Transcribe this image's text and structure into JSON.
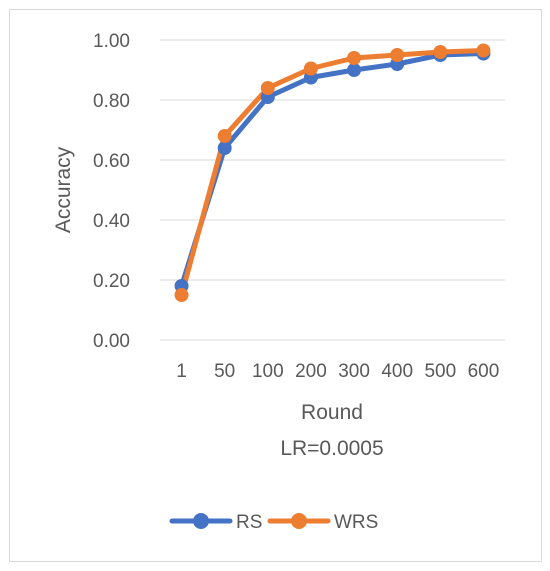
{
  "chart_data": {
    "type": "line",
    "categories": [
      "1",
      "50",
      "100",
      "200",
      "300",
      "400",
      "500",
      "600"
    ],
    "series": [
      {
        "name": "RS",
        "color": "#4472c4",
        "values": [
          0.18,
          0.64,
          0.81,
          0.875,
          0.9,
          0.92,
          0.95,
          0.955
        ]
      },
      {
        "name": "WRS",
        "color": "#ed7d31",
        "values": [
          0.15,
          0.68,
          0.84,
          0.905,
          0.94,
          0.95,
          0.96,
          0.965
        ]
      }
    ],
    "title": "",
    "xlabel": "Round",
    "xsublabel": "LR=0.0005",
    "ylabel": "Accuracy",
    "ylim": [
      0,
      1
    ],
    "yticks": [
      "0.00",
      "0.20",
      "0.40",
      "0.60",
      "0.80",
      "1.00"
    ],
    "grid": true,
    "legend_position": "bottom"
  }
}
